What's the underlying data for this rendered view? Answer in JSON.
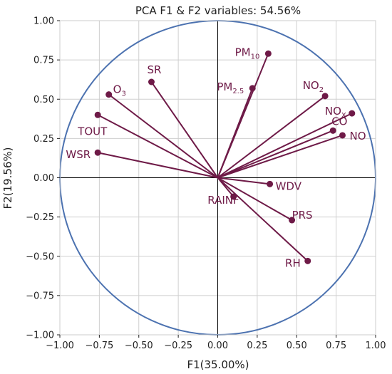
{
  "chart_data": {
    "type": "scatter",
    "subtype": "pca-correlation-circle",
    "title": "PCA F1 & F2 variables: 54.56%",
    "xlabel": "F1(35.00%)",
    "ylabel": "F2(19.56%)",
    "xlim": [
      -1.0,
      1.0
    ],
    "ylim": [
      -1.0,
      1.0
    ],
    "x_ticks": [
      -1.0,
      -0.75,
      -0.5,
      -0.25,
      0.0,
      0.25,
      0.5,
      0.75,
      1.0
    ],
    "y_ticks": [
      -1.0,
      -0.75,
      -0.5,
      -0.25,
      0.0,
      0.25,
      0.5,
      0.75,
      1.0
    ],
    "x_tick_labels": [
      "−1.00",
      "−0.75",
      "−0.50",
      "−0.25",
      "0.00",
      "0.25",
      "0.50",
      "0.75",
      "1.00"
    ],
    "y_tick_labels": [
      "−1.00",
      "−0.75",
      "−0.50",
      "−0.25",
      "0.00",
      "0.25",
      "0.50",
      "0.75",
      "1.00"
    ],
    "grid": true,
    "unit_circle": true,
    "colors": {
      "vector": "#6e1a47",
      "circle": "#4c72b0",
      "grid": "#cfcfcf",
      "axis_cross": "#000000"
    },
    "variables": [
      {
        "label": "PM",
        "sub": "10",
        "x": 0.32,
        "y": 0.79,
        "anchor": "end",
        "dx": -12,
        "dy": 3
      },
      {
        "label": "PM",
        "sub": "2.5",
        "x": 0.22,
        "y": 0.57,
        "anchor": "end",
        "dx": -12,
        "dy": 3
      },
      {
        "label": "SR",
        "x": -0.42,
        "y": 0.61,
        "anchor": "middle",
        "dx": 4,
        "dy": -12
      },
      {
        "label": "O",
        "sub": "3",
        "x": -0.69,
        "y": 0.53,
        "anchor": "start",
        "dx": 6,
        "dy": -2
      },
      {
        "label": "TOUT",
        "x": -0.76,
        "y": 0.4,
        "anchor": "start",
        "dx": -28,
        "dy": 28
      },
      {
        "label": "WSR",
        "x": -0.76,
        "y": 0.16,
        "anchor": "end",
        "dx": -10,
        "dy": 8
      },
      {
        "label": "NO",
        "sub": "2",
        "x": 0.68,
        "y": 0.52,
        "anchor": "end",
        "dx": -2,
        "dy": -10
      },
      {
        "label": "NO",
        "sub": "X",
        "x": 0.85,
        "y": 0.41,
        "anchor": "end",
        "dx": -8,
        "dy": 2
      },
      {
        "label": "CO",
        "x": 0.73,
        "y": 0.3,
        "anchor": "start",
        "dx": -2,
        "dy": -8
      },
      {
        "label": "NO",
        "x": 0.79,
        "y": 0.27,
        "anchor": "start",
        "dx": 10,
        "dy": 6
      },
      {
        "label": "WDV",
        "x": 0.33,
        "y": -0.04,
        "anchor": "start",
        "dx": 8,
        "dy": 8
      },
      {
        "label": "RAINF",
        "x": 0.1,
        "y": -0.12,
        "anchor": "end",
        "dx": 8,
        "dy": 10
      },
      {
        "label": "PRS",
        "x": 0.47,
        "y": -0.27,
        "anchor": "start",
        "dx": 0,
        "dy": -2
      },
      {
        "label": "RH",
        "x": 0.57,
        "y": -0.53,
        "anchor": "end",
        "dx": -10,
        "dy": 8
      }
    ]
  }
}
